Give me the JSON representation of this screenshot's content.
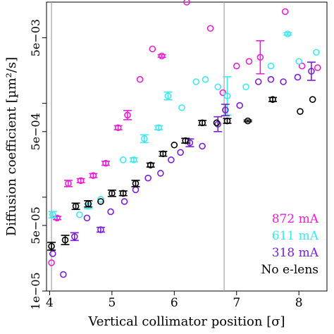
{
  "chart_data": {
    "type": "scatter",
    "xlabel": "Vertical collimator position [σ]",
    "ylabel": "Diffusion coefficient [µm²/s]",
    "xlim": [
      3.95,
      8.45
    ],
    "ylim": [
      1e-05,
      0.012
    ],
    "y_scale": "log",
    "x_ticks": [
      4,
      5,
      6,
      7,
      8
    ],
    "x_tick_labels": [
      "4",
      "5",
      "6",
      "7",
      "8"
    ],
    "y_ticks": [
      1e-05,
      5e-05,
      0.0005,
      0.005
    ],
    "y_tick_labels": [
      "1e−05",
      "5e−05",
      "5e−04",
      "5e−03"
    ],
    "y_minor_ticks": [
      0.0001,
      0.001
    ],
    "vlines": [
      4.03,
      6.8
    ],
    "legend_position": "bottom-right",
    "grid": false,
    "series": [
      {
        "name": "872 mA",
        "color": "#e81fd6",
        "points": [
          {
            "x": 4.03,
            "y": 2e-05
          },
          {
            "x": 4.12,
            "y": 6e-05,
            "err": 0.04
          },
          {
            "x": 4.3,
            "y": 0.00014,
            "err": 0.08
          },
          {
            "x": 4.5,
            "y": 0.00015,
            "err": 0.05
          },
          {
            "x": 4.7,
            "y": 0.00017,
            "err": 0.05
          },
          {
            "x": 4.9,
            "y": 0.00023,
            "err": 0.05
          },
          {
            "x": 5.1,
            "y": 0.00055,
            "err": 0.05
          },
          {
            "x": 5.25,
            "y": 0.00075,
            "err": 0.12
          },
          {
            "x": 5.45,
            "y": 0.0018
          },
          {
            "x": 5.65,
            "y": 0.0038
          },
          {
            "x": 5.8,
            "y": 0.0032,
            "err": 0.03
          },
          {
            "x": 6.0,
            "y": 0.016
          },
          {
            "x": 6.2,
            "y": 0.012
          },
          {
            "x": 6.58,
            "y": 0.0063
          },
          {
            "x": 6.78,
            "y": 0.0013
          },
          {
            "x": 7.0,
            "y": 0.0025
          },
          {
            "x": 7.2,
            "y": 0.0028
          },
          {
            "x": 7.38,
            "y": 0.0031,
            "err": 0.5
          },
          {
            "x": 7.78,
            "y": 0.0095
          },
          {
            "x": 8.05,
            "y": 0.0025
          },
          {
            "x": 8.3,
            "y": 0.0024
          }
        ]
      },
      {
        "name": "611 mA",
        "color": "#3ee8f0",
        "points": [
          {
            "x": 4.05,
            "y": 6.5e-05,
            "err": 0.08
          },
          {
            "x": 4.48,
            "y": 6.5e-05
          },
          {
            "x": 4.62,
            "y": 8e-05,
            "err": 0.06
          },
          {
            "x": 4.82,
            "y": 9.5e-05
          },
          {
            "x": 5.18,
            "y": 0.00025
          },
          {
            "x": 5.35,
            "y": 0.00025,
            "err": 0.05
          },
          {
            "x": 5.52,
            "y": 0.00042,
            "err": 0.1
          },
          {
            "x": 5.75,
            "y": 0.00055,
            "err": 0.05
          },
          {
            "x": 5.9,
            "y": 0.0012,
            "err": 0.1
          },
          {
            "x": 6.12,
            "y": 0.0009
          },
          {
            "x": 6.35,
            "y": 0.0017
          },
          {
            "x": 6.5,
            "y": 0.0018
          },
          {
            "x": 6.7,
            "y": 0.0015
          },
          {
            "x": 6.85,
            "y": 0.0012,
            "err": 0.6
          },
          {
            "x": 7.15,
            "y": 0.0015
          },
          {
            "x": 7.55,
            "y": 0.0025
          },
          {
            "x": 7.82,
            "y": 0.0055,
            "err": 0.03
          },
          {
            "x": 8.0,
            "y": 0.0028
          },
          {
            "x": 8.28,
            "y": 0.0035
          }
        ]
      },
      {
        "name": "318 mA",
        "color": "#7a1fd6",
        "points": [
          {
            "x": 4.05,
            "y": 2.5e-05
          },
          {
            "x": 4.22,
            "y": 1.5e-05
          },
          {
            "x": 4.4,
            "y": 3.8e-05,
            "err": 0.1
          },
          {
            "x": 4.6,
            "y": 6e-05
          },
          {
            "x": 4.82,
            "y": 4.5e-05,
            "err": 0.06
          },
          {
            "x": 4.98,
            "y": 7e-05
          },
          {
            "x": 5.2,
            "y": 9e-05
          },
          {
            "x": 5.38,
            "y": 0.00012
          },
          {
            "x": 5.58,
            "y": 0.00016
          },
          {
            "x": 5.78,
            "y": 0.00018
          },
          {
            "x": 5.95,
            "y": 0.00025
          },
          {
            "x": 6.1,
            "y": 0.0003
          },
          {
            "x": 6.25,
            "y": 0.00038,
            "err": 0.1
          },
          {
            "x": 6.45,
            "y": 0.00035
          },
          {
            "x": 6.7,
            "y": 0.0006,
            "err": 0.2
          },
          {
            "x": 6.82,
            "y": 0.00085,
            "err": 0.15
          },
          {
            "x": 7.05,
            "y": 0.00095
          },
          {
            "x": 7.35,
            "y": 0.0017
          },
          {
            "x": 7.55,
            "y": 0.0018
          },
          {
            "x": 7.75,
            "y": 0.0017
          },
          {
            "x": 7.98,
            "y": 0.0019
          },
          {
            "x": 8.2,
            "y": 0.0022,
            "err": 0.25
          }
        ]
      },
      {
        "name": "No e-lens",
        "color": "#000000",
        "points": [
          {
            "x": 4.03,
            "y": 3e-05,
            "err": 0.1
          },
          {
            "x": 4.25,
            "y": 3.5e-05,
            "err": 0.12
          },
          {
            "x": 4.42,
            "y": 8e-05,
            "err": 0.08
          },
          {
            "x": 4.62,
            "y": 8.5e-05,
            "err": 0.08
          },
          {
            "x": 4.82,
            "y": 9e-05
          },
          {
            "x": 5.0,
            "y": 0.00011,
            "err": 0.08
          },
          {
            "x": 5.18,
            "y": 0.00011,
            "err": 0.06
          },
          {
            "x": 5.38,
            "y": 0.00014,
            "err": 0.08
          },
          {
            "x": 5.62,
            "y": 0.00022,
            "err": 0.05
          },
          {
            "x": 5.82,
            "y": 0.00029,
            "err": 0.06
          },
          {
            "x": 6.0,
            "y": 0.00036
          },
          {
            "x": 6.18,
            "y": 0.0004,
            "err": 0.06
          },
          {
            "x": 6.45,
            "y": 0.00062,
            "err": 0.06
          },
          {
            "x": 6.68,
            "y": 0.00062
          },
          {
            "x": 6.85,
            "y": 0.00065,
            "err": 0.06
          },
          {
            "x": 7.18,
            "y": 0.00065,
            "err": 0.02
          },
          {
            "x": 7.58,
            "y": 0.0011,
            "err": 0.05
          },
          {
            "x": 8.02,
            "y": 0.00082
          },
          {
            "x": 8.22,
            "y": 0.0011
          }
        ]
      }
    ]
  }
}
